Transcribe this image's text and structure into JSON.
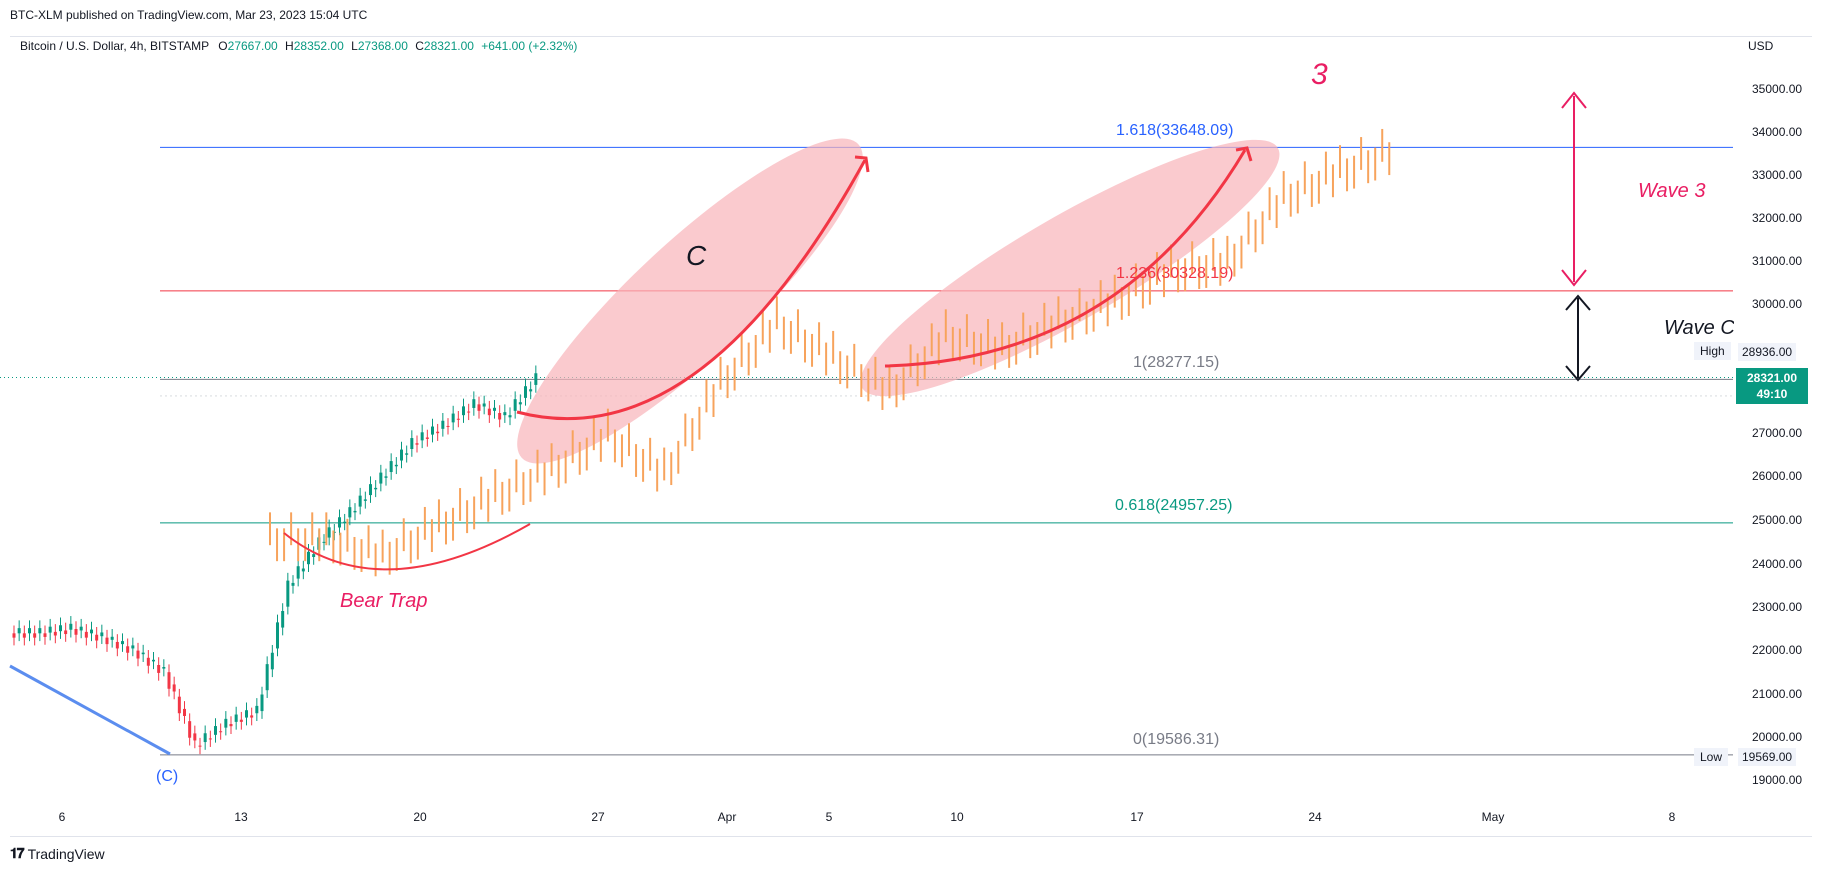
{
  "header": {
    "published": "BTC-XLM published on TradingView.com, Mar 23, 2023 15:04 UTC"
  },
  "legend": {
    "symbol": "Bitcoin / U.S. Dollar, 4h, BITSTAMP",
    "o_label": "O",
    "o": "27667.00",
    "h_label": "H",
    "h": "28352.00",
    "l_label": "L",
    "l": "27368.00",
    "c_label": "C",
    "c": "28321.00",
    "change": "+641.00 (+2.32%)"
  },
  "axis": {
    "currency": "USD",
    "price_ticks": [
      "35000.00",
      "34000.00",
      "33000.00",
      "32000.00",
      "31000.00",
      "30000.00",
      "28936.00",
      "27000.00",
      "26000.00",
      "25000.00",
      "24000.00",
      "23000.00",
      "22000.00",
      "21000.00",
      "20000.00",
      "19569.00",
      "19000.00"
    ],
    "date_ticks": [
      "6",
      "13",
      "20",
      "27",
      "Apr",
      "5",
      "10",
      "17",
      "24",
      "May",
      "8"
    ]
  },
  "current_price": {
    "value": "28321.00",
    "countdown": "49:10"
  },
  "high_tag": {
    "label": "High",
    "value": "28936.00"
  },
  "low_tag": {
    "label": "Low",
    "value": "19569.00"
  },
  "fib_levels": {
    "l1618": "1.618(33648.09)",
    "l1236": "1.236(30328.19)",
    "l1": "1(28277.15)",
    "l0618": "0.618(24957.25)",
    "l0": "0(19586.31)"
  },
  "annotations": {
    "wave_c_letter": "C",
    "bear_trap": "Bear Trap",
    "wave3_number": "3",
    "wave3": "Wave 3",
    "wave_c": "Wave C",
    "c_label": "(C)"
  },
  "footer": {
    "brand": "TradingView"
  },
  "colors": {
    "up": "#089981",
    "down": "#f23645",
    "projection": "#f7a35c",
    "fib_blue": "#2962ff",
    "fib_red": "#f23645",
    "fib_green": "#089981",
    "fib_gray": "#787b86",
    "annotation_red": "#e91e63"
  },
  "chart_data": {
    "type": "candlestick",
    "y_axis_range": [
      18700,
      35900
    ],
    "x_ticks": [
      "6",
      "13",
      "20",
      "27",
      "Apr",
      "5",
      "10",
      "17",
      "24",
      "May",
      "8"
    ],
    "horizontal_levels": [
      33648.09,
      30328.19,
      28277.15,
      24957.25,
      19586.31
    ],
    "actual_closes_approx": [
      22400,
      22500,
      22300,
      22000,
      21500,
      19800,
      20300,
      20600,
      23500,
      24500,
      25200,
      26000,
      26800,
      27200,
      27700,
      27400,
      28300
    ],
    "projection_closes_approx": [
      24600,
      24200,
      24900,
      25600,
      26200,
      27000,
      26100,
      28200,
      29600,
      28800,
      28000,
      29300,
      29000,
      29600,
      30100,
      30800,
      31000,
      32500,
      33100,
      33600
    ]
  }
}
